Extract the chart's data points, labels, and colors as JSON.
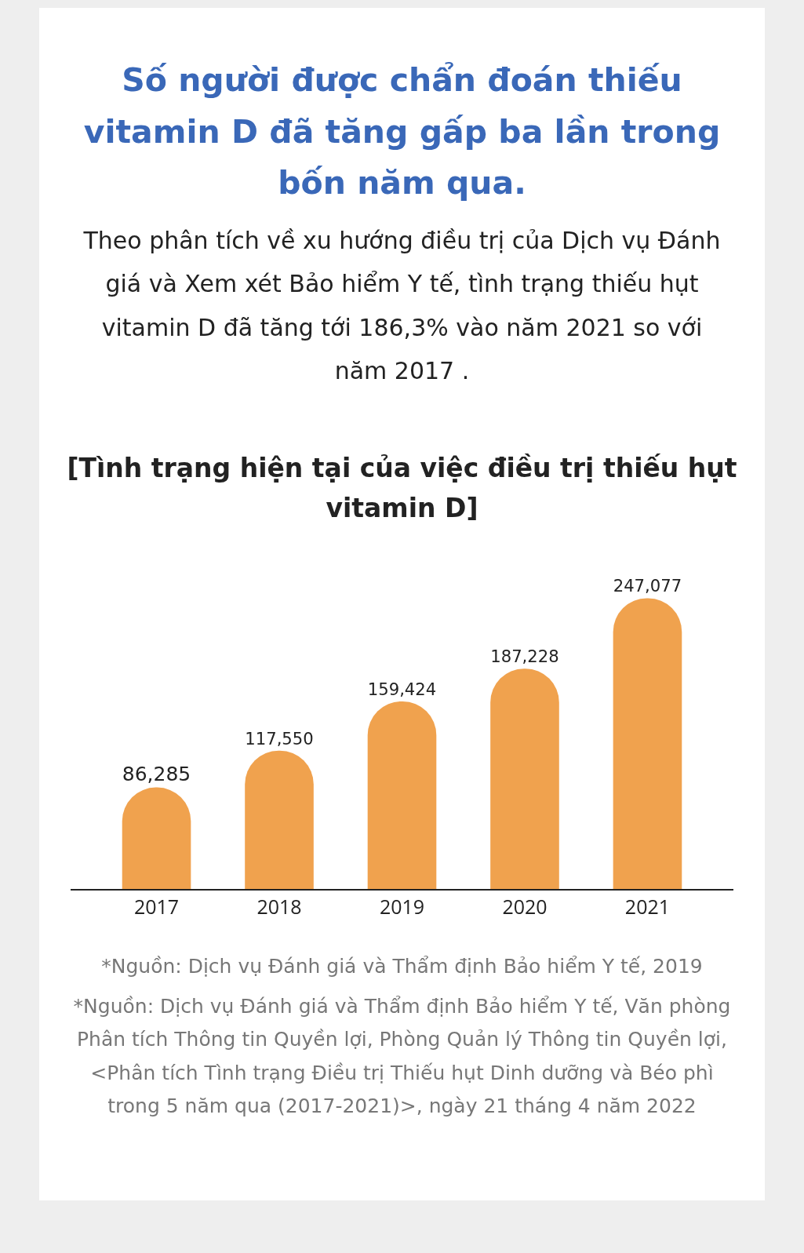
{
  "chart_data": {
    "type": "bar",
    "title": "Số người được chẩn đoán thiếu vitamin D đã tăng gấp ba lần trong bốn năm qua.",
    "subtitle": "Theo phân tích về xu hướng điều trị của Dịch vụ Đánh giá và Xem xét Bảo hiểm Y tế, tình trạng thiếu hụt vitamin D đã tăng tới 186,3% vào năm 2021 so với năm 2017 .",
    "categories": [
      "2017",
      "2018",
      "2019",
      "2020",
      "2021"
    ],
    "values": [
      86285,
      117550,
      159424,
      187228,
      247077
    ],
    "color": "#f0a24e",
    "value_labels": [
      "86,285",
      "117,550",
      "159,424",
      "187,228",
      "247,077"
    ],
    "annotations": [
      "[Tình trạng hiện tại của việc điều trị thiếu hụt vitamin D]",
      "*Nguồn: Dịch vụ Đánh giá và Thẩm định Bảo hiểm Y tế, 2019",
      "*Nguồn: Dịch vụ Đánh giá và Thẩm định Bảo hiểm Y tế, Văn phòng Phân tích Thông tin Quyền lợi, Phòng Quản lý Thông tin Quyền lợi, <Phân tích Tình trạng Điều trị Thiếu hụt Dinh dưỡng và Béo phì trong 5 năm qua (2017-2021)>, ngày 21 tháng 4 năm 2022"
    ]
  }
}
